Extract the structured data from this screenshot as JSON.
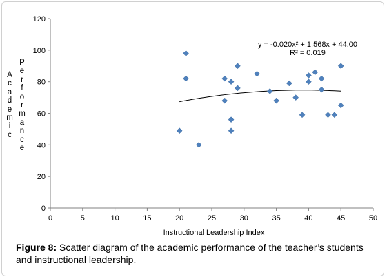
{
  "chart_data": {
    "type": "scatter",
    "title": "",
    "xlabel": "Instructional Leadership Index",
    "ylabel": "Academic Performance",
    "ylabel_words": [
      "Academic",
      "Performance"
    ],
    "xlim": [
      0,
      50
    ],
    "ylim": [
      0,
      120
    ],
    "x_ticks": [
      0,
      5,
      10,
      15,
      20,
      25,
      30,
      35,
      40,
      45,
      50
    ],
    "y_ticks": [
      0,
      20,
      40,
      60,
      80,
      100,
      120
    ],
    "grid": false,
    "marker": "diamond",
    "marker_color": "#4f81bd",
    "points": [
      {
        "x": 20,
        "y": 49
      },
      {
        "x": 21,
        "y": 98
      },
      {
        "x": 21,
        "y": 82
      },
      {
        "x": 23,
        "y": 40
      },
      {
        "x": 27,
        "y": 82
      },
      {
        "x": 27,
        "y": 68
      },
      {
        "x": 28,
        "y": 80
      },
      {
        "x": 28,
        "y": 56
      },
      {
        "x": 28,
        "y": 49
      },
      {
        "x": 29,
        "y": 90
      },
      {
        "x": 29,
        "y": 76
      },
      {
        "x": 32,
        "y": 85
      },
      {
        "x": 34,
        "y": 74
      },
      {
        "x": 35,
        "y": 68
      },
      {
        "x": 37,
        "y": 79
      },
      {
        "x": 38,
        "y": 70
      },
      {
        "x": 39,
        "y": 59
      },
      {
        "x": 40,
        "y": 84
      },
      {
        "x": 40,
        "y": 80
      },
      {
        "x": 41,
        "y": 86
      },
      {
        "x": 42,
        "y": 82
      },
      {
        "x": 42,
        "y": 75
      },
      {
        "x": 43,
        "y": 59
      },
      {
        "x": 44,
        "y": 59
      },
      {
        "x": 45,
        "y": 90
      },
      {
        "x": 45,
        "y": 65
      }
    ],
    "trendline": {
      "type": "polynomial",
      "coefficients": {
        "a": -0.02,
        "b": 1.568,
        "c": 44.0
      },
      "x_range": [
        20,
        45
      ],
      "equation_text": "y = -0.020x² + 1.568x + 44.00",
      "r2_text": "R² = 0.019",
      "color": "#000000"
    }
  },
  "caption": {
    "figure_label": "Figure 8:",
    "text": " Scatter diagram of the academic performance of the teacher’s students and instructional leadership."
  }
}
